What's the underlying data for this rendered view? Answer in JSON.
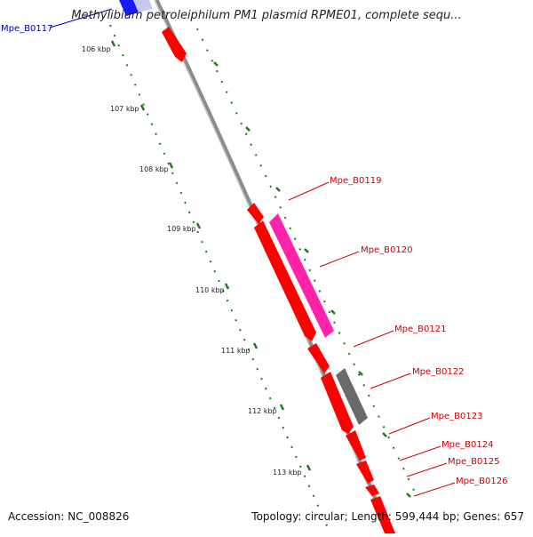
{
  "title": "Methylibium petroleiphilum PM1 plasmid RPME01, complete sequ...",
  "accession": "Accession: NC_008826",
  "topology": "Topology: circular; Length: 599,444 bp; Genes: 657",
  "colors": {
    "forward_gene": "#ff0000",
    "reverse_gene_pink": "#ff22aa",
    "reverse_gene_gray": "#6a6a6a",
    "backbone": "#8c8c8c",
    "tick": "#1a7a1a",
    "label_red": "#cc0000",
    "label_blue": "#0000aa"
  },
  "kbp_ticks": [
    "106 kbp",
    "107 kbp",
    "108 kbp",
    "109 kbp",
    "110 kbp",
    "111 kbp",
    "112 kbp",
    "113 kbp"
  ],
  "gene_labels": [
    {
      "text": "Mpe_B0117",
      "color": "blue"
    },
    {
      "text": "Mpe_B0119",
      "color": "red"
    },
    {
      "text": "Mpe_B0120",
      "color": "red"
    },
    {
      "text": "Mpe_B0121",
      "color": "red"
    },
    {
      "text": "Mpe_B0122",
      "color": "red"
    },
    {
      "text": "Mpe_B0123",
      "color": "red"
    },
    {
      "text": "Mpe_B0124",
      "color": "red"
    },
    {
      "text": "Mpe_B0125",
      "color": "red"
    },
    {
      "text": "Mpe_B0126",
      "color": "red"
    }
  ]
}
